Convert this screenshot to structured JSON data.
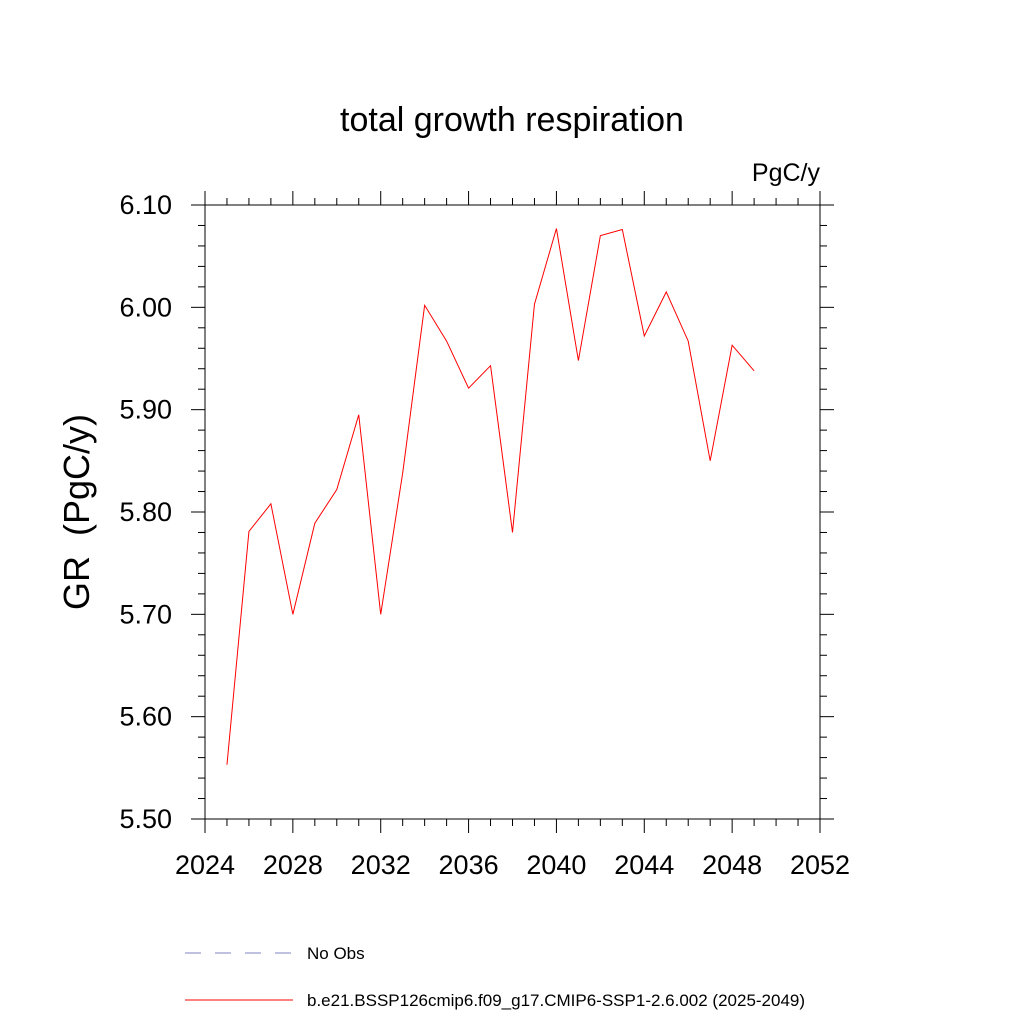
{
  "chart_data": {
    "type": "line",
    "title": "total growth respiration",
    "units_label": "PgC/y",
    "ylabel": "GR  (PgC/y)",
    "xlabel": "",
    "xlim": [
      2024,
      2052
    ],
    "ylim": [
      5.5,
      6.1
    ],
    "x_ticks": [
      "2024",
      "2028",
      "2032",
      "2036",
      "2040",
      "2044",
      "2048",
      "2052"
    ],
    "x_tick_values": [
      2024,
      2028,
      2032,
      2036,
      2040,
      2044,
      2048,
      2052
    ],
    "y_ticks": [
      "5.50",
      "5.60",
      "5.70",
      "5.80",
      "5.90",
      "6.00",
      "6.10"
    ],
    "y_tick_values": [
      5.5,
      5.6,
      5.7,
      5.8,
      5.9,
      6.0,
      6.1
    ],
    "series": [
      {
        "name": "b.e21.BSSP126cmip6.f09_g17.CMIP6-SSP1-2.6.002 (2025-2049)",
        "color": "#ff0000",
        "x": [
          2025,
          2026,
          2027,
          2028,
          2029,
          2030,
          2031,
          2032,
          2033,
          2034,
          2035,
          2036,
          2037,
          2038,
          2039,
          2040,
          2041,
          2042,
          2043,
          2044,
          2045,
          2046,
          2047,
          2048,
          2049
        ],
        "values": [
          5.553,
          5.781,
          5.808,
          5.7,
          5.789,
          5.822,
          5.895,
          5.7,
          5.838,
          6.002,
          5.967,
          5.921,
          5.943,
          5.78,
          6.003,
          6.077,
          5.948,
          6.07,
          6.076,
          5.972,
          6.015,
          5.967,
          5.85,
          5.963,
          5.938
        ]
      }
    ],
    "legend": [
      {
        "label": "No Obs",
        "color": "#8080c0",
        "style": "dashed"
      },
      {
        "label": "b.e21.BSSP126cmip6.f09_g17.CMIP6-SSP1-2.6.002 (2025-2049)",
        "color": "#ff0000",
        "style": "solid"
      }
    ],
    "legend_position": "bottom",
    "grid": false
  }
}
